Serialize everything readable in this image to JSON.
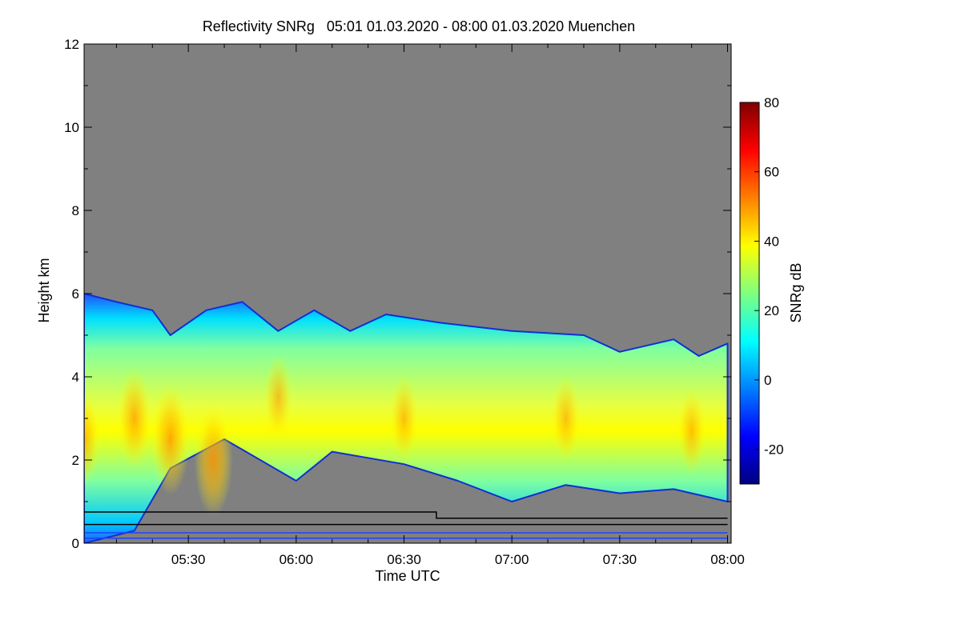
{
  "chart_data": {
    "type": "heatmap",
    "title": "Reflectivity SNRg   05:01 01.03.2020 - 08:00 01.03.2020 Muenchen",
    "xlabel": "Time UTC",
    "ylabel": "Height km",
    "xlim": [
      "05:01",
      "08:01"
    ],
    "ylim": [
      0,
      12
    ],
    "xticks": [
      "05:30",
      "06:00",
      "06:30",
      "07:00",
      "07:30",
      "08:00"
    ],
    "yticks": [
      "0",
      "2",
      "4",
      "6",
      "8",
      "10",
      "12"
    ],
    "background_color": "#808080",
    "colorbar": {
      "label": "SNRg dB",
      "range": [
        -30,
        80
      ],
      "ticks": [
        "-20",
        "0",
        "20",
        "40",
        "60",
        "80"
      ],
      "colormap": "jet"
    },
    "cloud_top_km": [
      {
        "time": "05:01",
        "height": 6.0
      },
      {
        "time": "05:10",
        "height": 5.8
      },
      {
        "time": "05:20",
        "height": 5.6
      },
      {
        "time": "05:25",
        "height": 5.0
      },
      {
        "time": "05:35",
        "height": 5.6
      },
      {
        "time": "05:45",
        "height": 5.8
      },
      {
        "time": "05:55",
        "height": 5.1
      },
      {
        "time": "06:05",
        "height": 5.6
      },
      {
        "time": "06:15",
        "height": 5.1
      },
      {
        "time": "06:25",
        "height": 5.5
      },
      {
        "time": "06:40",
        "height": 5.3
      },
      {
        "time": "07:00",
        "height": 5.1
      },
      {
        "time": "07:20",
        "height": 5.0
      },
      {
        "time": "07:30",
        "height": 4.6
      },
      {
        "time": "07:45",
        "height": 4.9
      },
      {
        "time": "07:52",
        "height": 4.5
      },
      {
        "time": "08:00",
        "height": 4.8
      }
    ],
    "cloud_base_km": [
      {
        "time": "05:01",
        "height": 0.0
      },
      {
        "time": "05:15",
        "height": 0.3
      },
      {
        "time": "05:25",
        "height": 1.8
      },
      {
        "time": "05:40",
        "height": 2.5
      },
      {
        "time": "05:50",
        "height": 2.0
      },
      {
        "time": "06:00",
        "height": 1.5
      },
      {
        "time": "06:10",
        "height": 2.2
      },
      {
        "time": "06:30",
        "height": 1.9
      },
      {
        "time": "06:45",
        "height": 1.5
      },
      {
        "time": "07:00",
        "height": 1.0
      },
      {
        "time": "07:15",
        "height": 1.4
      },
      {
        "time": "07:30",
        "height": 1.2
      },
      {
        "time": "07:45",
        "height": 1.3
      },
      {
        "time": "08:00",
        "height": 1.0
      }
    ],
    "core_snr_db": [
      {
        "time": "05:01",
        "height": 2.5,
        "value": 42
      },
      {
        "time": "05:15",
        "height": 3.0,
        "value": 45
      },
      {
        "time": "05:25",
        "height": 2.5,
        "value": 50
      },
      {
        "time": "05:37",
        "height": 2.0,
        "value": 50
      },
      {
        "time": "05:55",
        "height": 3.5,
        "value": 38
      },
      {
        "time": "06:30",
        "height": 3.0,
        "value": 33
      },
      {
        "time": "07:15",
        "height": 3.0,
        "value": 37
      },
      {
        "time": "07:50",
        "height": 2.7,
        "value": 35
      }
    ],
    "lines": [
      {
        "color": "#000000",
        "points": [
          {
            "time": "05:01",
            "height": 0.75
          },
          {
            "time": "06:39",
            "height": 0.75
          },
          {
            "time": "06:39",
            "height": 0.6
          },
          {
            "time": "08:00",
            "height": 0.6
          }
        ]
      },
      {
        "color": "#000000",
        "points": [
          {
            "time": "05:01",
            "height": 0.45
          },
          {
            "time": "08:00",
            "height": 0.45
          }
        ]
      },
      {
        "color": "#2040ff",
        "points": [
          {
            "time": "05:01",
            "height": 0.25
          },
          {
            "time": "08:00",
            "height": 0.25
          }
        ]
      },
      {
        "color": "#2040ff",
        "points": [
          {
            "time": "05:01",
            "height": 0.12
          },
          {
            "time": "08:00",
            "height": 0.12
          }
        ]
      }
    ]
  }
}
